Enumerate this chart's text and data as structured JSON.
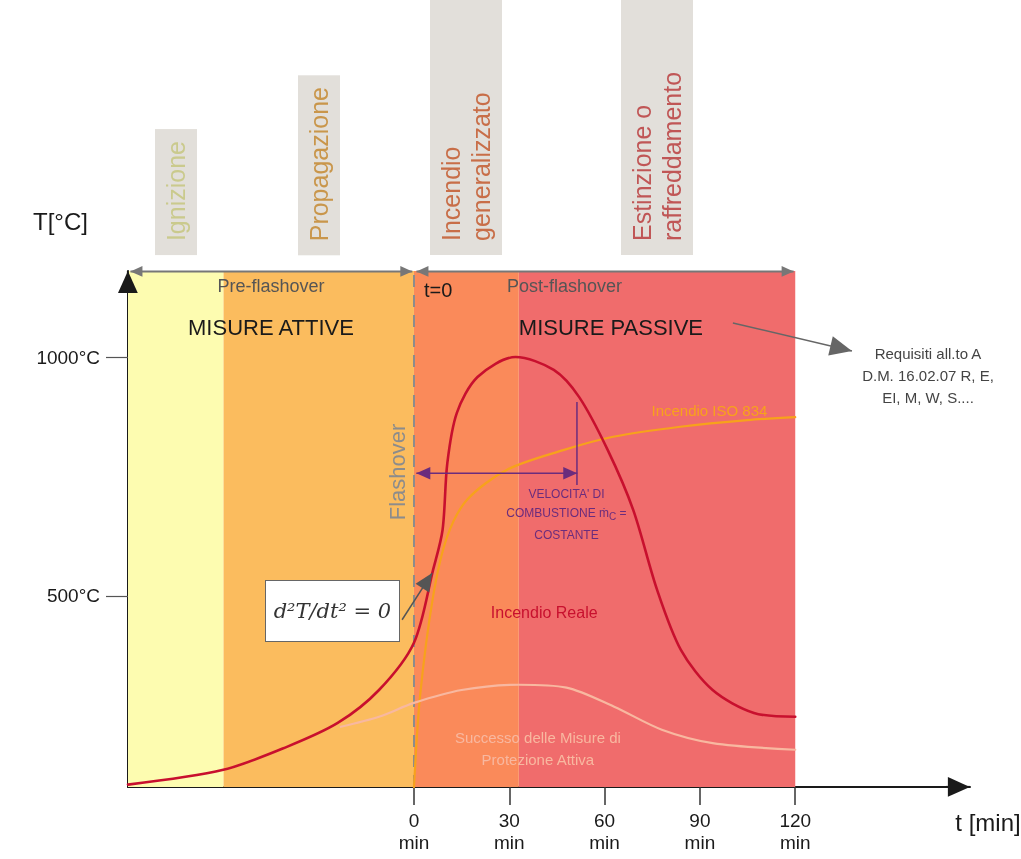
{
  "chart_data": {
    "type": "line",
    "xlabel": "t [min]",
    "ylabel": "T[°C]",
    "xlim": [
      -90,
      175
    ],
    "ylim": [
      100,
      1180
    ],
    "xticks": [
      {
        "value": 0,
        "label": "0 min"
      },
      {
        "value": 30,
        "label": "30 min"
      },
      {
        "value": 60,
        "label": "60 min"
      },
      {
        "value": 90,
        "label": "90 min"
      },
      {
        "value": 120,
        "label": "120 min"
      }
    ],
    "yticks": [
      {
        "value": 500,
        "label": "500°C"
      },
      {
        "value": 1000,
        "label": "1000°C"
      }
    ],
    "grid": false,
    "legend": false,
    "marker": "none",
    "line_style": "solid",
    "series": [
      {
        "name": "Incendio ISO 834",
        "color": "#f7a21b",
        "x": [
          0,
          1.9,
          6,
          10.4,
          16.7,
          29.3,
          47,
          62.7,
          83.8,
          104.9,
          120
        ],
        "values": [
          100,
          289,
          498,
          623,
          701,
          764,
          805,
          833,
          854,
          868,
          874
        ]
      },
      {
        "name": "Incendio Reale",
        "color": "#c8102e",
        "x": [
          -90,
          -60,
          -40,
          -24,
          -11,
          0,
          6,
          9,
          10.5,
          13.5,
          20,
          32,
          44,
          52,
          61,
          69,
          76.5,
          84,
          94,
          107,
          120
        ],
        "values": [
          105,
          136,
          184,
          234,
          303,
          402,
          554,
          638,
          778,
          883,
          958,
          1000,
          973,
          916,
          805,
          680,
          513,
          387,
          303,
          255,
          247
        ]
      },
      {
        "name": "Successo delle Misure di Protezione Attiva",
        "color": "#f8b8a0",
        "x": [
          -23,
          -11,
          0,
          15,
          33,
          48,
          63,
          78,
          94,
          120
        ],
        "values": [
          226,
          247,
          276,
          303,
          314,
          308,
          268,
          220,
          192,
          178
        ]
      }
    ],
    "bands": [
      {
        "axis": "x",
        "from": -90,
        "to": -60,
        "label": "Ignizione",
        "color": "#fdfcb0"
      },
      {
        "axis": "x",
        "from": -60,
        "to": 0,
        "label": "Propagazione",
        "color": "#fbbc5e"
      },
      {
        "axis": "x",
        "from": 0,
        "to": 33,
        "label": "Incendio generalizzato",
        "color": "#fa8a5a"
      },
      {
        "axis": "x",
        "from": 33,
        "to": 120,
        "label": "Estinzione o raffreddamento",
        "color": "#f06c6c"
      }
    ],
    "ref_lines": [
      {
        "axis": "x",
        "value": 0,
        "label": "Flashover",
        "color": "#8c8c8c",
        "line_style": "dashed"
      }
    ],
    "annotations": [
      "Pre-flashover",
      "Post-flashover",
      "MISURE ATTIVE",
      "MISURE PASSIVE",
      "t=0",
      {
        "text": "d²T/dt² = 0",
        "x": 6,
        "y": 554
      },
      "VELOCITA' DI COMBUSTIONE ṁ$_{C}$ = COSTANTE",
      "Requisiti all.to A D.M. 16.02.07 R, E, EI, M, W, S...."
    ]
  }
}
